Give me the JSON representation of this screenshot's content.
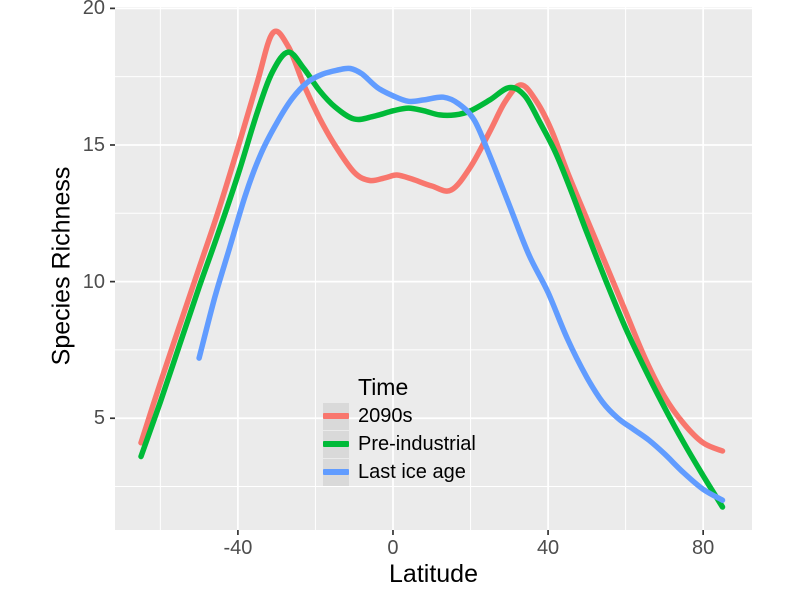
{
  "figure": {
    "background": "#ffffff",
    "panel_background": "#ebebeb",
    "grid_color": "#ffffff",
    "tick_mark_color": "#333333",
    "tick_label_color": "#4d4d4d",
    "legend_key_background": "#d9d9d9"
  },
  "chart_data": {
    "type": "line",
    "title": "",
    "xlabel": "Latitude",
    "ylabel": "Species Richness",
    "xlim": [
      -71.7,
      92.6
    ],
    "ylim": [
      0.91,
      20.05
    ],
    "x_ticks": [
      -40,
      0,
      40,
      80
    ],
    "y_ticks": [
      5,
      10,
      15,
      20
    ],
    "x_minor_ticks": [
      -60,
      -20,
      20,
      60
    ],
    "y_minor_ticks": [
      2.5,
      7.5,
      12.5,
      17.5
    ],
    "grid": true,
    "legend": {
      "title": "Time",
      "position": "inside-bottom-center"
    },
    "series": [
      {
        "name": "2090s",
        "color": "#F8766D",
        "points": [
          [
            -65,
            4.1
          ],
          [
            -60,
            6.3
          ],
          [
            -55,
            8.4
          ],
          [
            -50,
            10.5
          ],
          [
            -45,
            12.6
          ],
          [
            -40,
            14.9
          ],
          [
            -35,
            17.3
          ],
          [
            -31,
            19.1
          ],
          [
            -27,
            18.6
          ],
          [
            -23,
            17.2
          ],
          [
            -19,
            16.0
          ],
          [
            -15,
            15.0
          ],
          [
            -10,
            14.0
          ],
          [
            -6,
            13.7
          ],
          [
            -2,
            13.8
          ],
          [
            1,
            13.9
          ],
          [
            5,
            13.75
          ],
          [
            10,
            13.5
          ],
          [
            15,
            13.35
          ],
          [
            20,
            14.2
          ],
          [
            25,
            15.5
          ],
          [
            29,
            16.6
          ],
          [
            33,
            17.2
          ],
          [
            37,
            16.6
          ],
          [
            41,
            15.5
          ],
          [
            45,
            14.0
          ],
          [
            50,
            12.3
          ],
          [
            55,
            10.6
          ],
          [
            60,
            8.9
          ],
          [
            65,
            7.2
          ],
          [
            70,
            5.8
          ],
          [
            75,
            4.8
          ],
          [
            80,
            4.1
          ],
          [
            85,
            3.8
          ]
        ]
      },
      {
        "name": "Pre-industrial",
        "color": "#00BA38",
        "points": [
          [
            -65,
            3.6
          ],
          [
            -60,
            5.6
          ],
          [
            -55,
            7.7
          ],
          [
            -50,
            9.8
          ],
          [
            -45,
            11.8
          ],
          [
            -40,
            13.9
          ],
          [
            -35,
            16.2
          ],
          [
            -31,
            17.7
          ],
          [
            -27,
            18.4
          ],
          [
            -23,
            17.8
          ],
          [
            -19,
            17.0
          ],
          [
            -15,
            16.4
          ],
          [
            -10,
            15.95
          ],
          [
            -5,
            16.05
          ],
          [
            0,
            16.25
          ],
          [
            4,
            16.35
          ],
          [
            8,
            16.25
          ],
          [
            12,
            16.1
          ],
          [
            16,
            16.1
          ],
          [
            20,
            16.25
          ],
          [
            25,
            16.65
          ],
          [
            30,
            17.1
          ],
          [
            34,
            16.8
          ],
          [
            38,
            15.8
          ],
          [
            42,
            14.7
          ],
          [
            46,
            13.3
          ],
          [
            50,
            11.8
          ],
          [
            55,
            10.0
          ],
          [
            60,
            8.3
          ],
          [
            65,
            6.8
          ],
          [
            70,
            5.4
          ],
          [
            75,
            4.1
          ],
          [
            80,
            2.9
          ],
          [
            85,
            1.75
          ]
        ]
      },
      {
        "name": "Last ice age",
        "color": "#619CFF",
        "points": [
          [
            -50,
            7.2
          ],
          [
            -46,
            9.4
          ],
          [
            -42,
            11.3
          ],
          [
            -38,
            13.2
          ],
          [
            -34,
            14.7
          ],
          [
            -30,
            15.8
          ],
          [
            -26,
            16.7
          ],
          [
            -22,
            17.3
          ],
          [
            -18,
            17.6
          ],
          [
            -14,
            17.75
          ],
          [
            -11,
            17.8
          ],
          [
            -8,
            17.6
          ],
          [
            -4,
            17.1
          ],
          [
            0,
            16.8
          ],
          [
            4,
            16.6
          ],
          [
            8,
            16.65
          ],
          [
            13,
            16.75
          ],
          [
            17,
            16.5
          ],
          [
            21,
            15.9
          ],
          [
            25,
            14.6
          ],
          [
            30,
            12.8
          ],
          [
            35,
            11.0
          ],
          [
            40,
            9.6
          ],
          [
            45,
            7.9
          ],
          [
            50,
            6.5
          ],
          [
            54,
            5.6
          ],
          [
            58,
            5.0
          ],
          [
            62,
            4.6
          ],
          [
            66,
            4.2
          ],
          [
            70,
            3.7
          ],
          [
            75,
            3.0
          ],
          [
            80,
            2.4
          ],
          [
            85,
            2.0
          ]
        ]
      }
    ]
  }
}
